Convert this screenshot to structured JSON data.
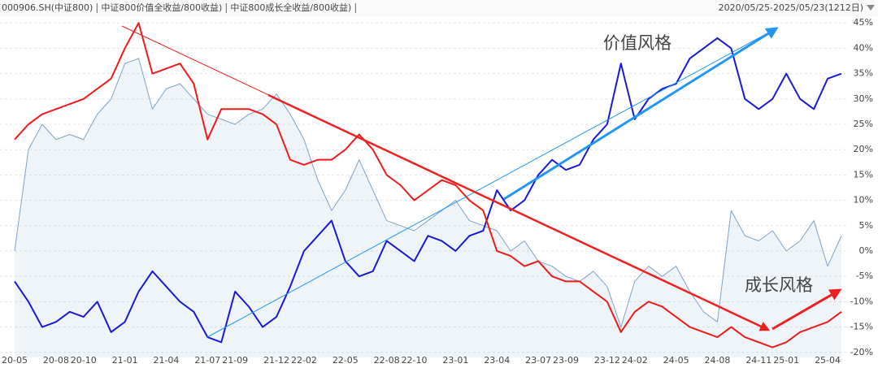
{
  "chart_data": {
    "type": "line",
    "date_range": "2020/05/25-2025/05/23(1212日)",
    "annotations": [
      {
        "text": "价值风格",
        "color": "#2196f3"
      },
      {
        "text": "成长风格",
        "color": "#f02020"
      }
    ],
    "categories": [
      "20-05",
      null,
      null,
      "20-08",
      null,
      "20-10",
      null,
      null,
      "21-01",
      null,
      null,
      "21-04",
      null,
      null,
      "21-07",
      null,
      "21-09",
      null,
      null,
      "21-12",
      null,
      "22-02",
      null,
      null,
      "22-05",
      null,
      null,
      "22-08",
      null,
      "22-10",
      null,
      null,
      "23-01",
      null,
      null,
      "23-04",
      null,
      null,
      "23-07",
      null,
      "23-09",
      null,
      null,
      "23-12",
      null,
      "24-02",
      null,
      null,
      "24-05",
      null,
      null,
      "24-08",
      null,
      null,
      "24-11",
      null,
      "25-01",
      null,
      null,
      "25-04",
      null
    ],
    "series": [
      {
        "name": "000906.SH(中证800)",
        "color": "#7fa3c8",
        "area": true,
        "values": [
          0,
          20,
          25,
          22,
          23,
          22,
          27,
          30,
          37,
          38,
          28,
          32,
          33,
          30,
          27,
          26,
          25,
          27,
          28,
          31,
          27,
          22,
          14,
          8,
          12,
          18,
          12,
          6,
          5,
          4,
          6,
          8,
          10,
          6,
          5,
          4,
          0,
          2,
          -2,
          -3,
          -5,
          -6,
          -4,
          -7,
          -15,
          -6,
          -3,
          -5,
          -3,
          -8,
          -12,
          -14,
          8,
          3,
          2,
          4,
          0,
          2,
          6,
          -3,
          3
        ]
      },
      {
        "name": "中证800价值全收益/800收益)",
        "color": "#1a1ad6",
        "values": [
          -6,
          -10,
          -15,
          -14,
          -12,
          -13,
          -10,
          -16,
          -14,
          -8,
          -4,
          -7,
          -10,
          -12,
          -17,
          -18,
          -8,
          -11,
          -15,
          -13,
          -7,
          0,
          3,
          6,
          -2,
          -5,
          -4,
          2,
          0,
          -2,
          3,
          2,
          0,
          3,
          4,
          12,
          8,
          10,
          15,
          18,
          16,
          17,
          22,
          25,
          37,
          26,
          30,
          32,
          33,
          38,
          40,
          42,
          40,
          30,
          28,
          30,
          35,
          30,
          28,
          34,
          35
        ]
      },
      {
        "name": "中证800成长全收益/800收益)",
        "color": "#f01a1a",
        "values": [
          22,
          25,
          27,
          28,
          29,
          30,
          32,
          34,
          40,
          45,
          35,
          36,
          37,
          33,
          22,
          28,
          28,
          28,
          27,
          25,
          18,
          17,
          18,
          18,
          20,
          23,
          20,
          15,
          13,
          10,
          12,
          14,
          13,
          10,
          8,
          0,
          -1,
          -3,
          -2,
          -5,
          -6,
          -6,
          -8,
          -10,
          -16,
          -12,
          -10,
          -11,
          -13,
          -15,
          -16,
          -17,
          -15,
          -17,
          -18,
          -19,
          -18,
          -16,
          -15,
          -14,
          -12
        ]
      }
    ],
    "ylim": [
      -21,
      46
    ],
    "yticks": [
      {
        "value": 45,
        "label": "45%"
      },
      {
        "value": 40,
        "label": "40%"
      },
      {
        "value": 35,
        "label": "35%"
      },
      {
        "value": 30,
        "label": "30%"
      },
      {
        "value": 25,
        "label": "25%"
      },
      {
        "value": 20,
        "label": "20%"
      },
      {
        "value": 15,
        "label": "15%"
      },
      {
        "value": 10,
        "label": "10%"
      },
      {
        "value": 5,
        "label": "5%"
      },
      {
        "value": 0,
        "label": "0%"
      },
      {
        "value": -5,
        "label": "-5%"
      },
      {
        "value": -10,
        "label": "-10%"
      },
      {
        "value": -15,
        "label": "-15%"
      },
      {
        "value": -20,
        "label": "-20%"
      }
    ],
    "grid": true
  }
}
